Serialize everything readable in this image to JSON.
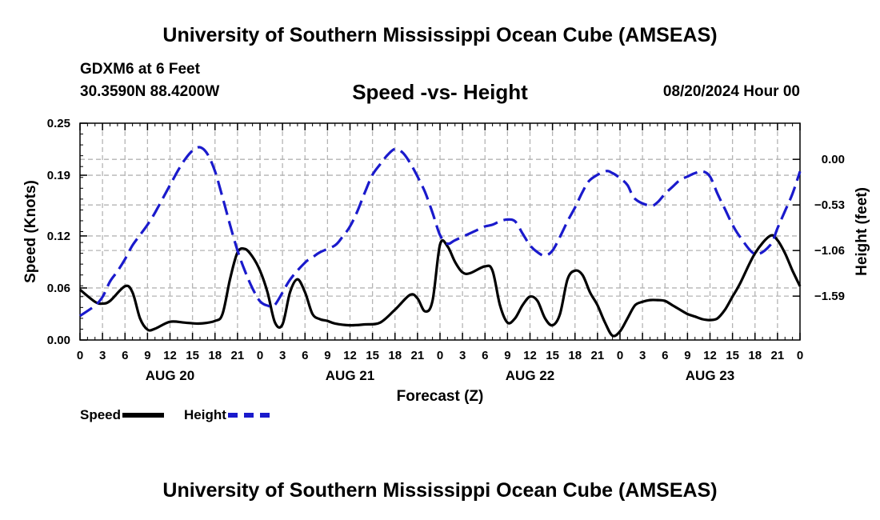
{
  "header": {
    "title": "University of Southern Mississippi Ocean Cube (AMSEAS)",
    "station": "GDXM6 at 6 Feet",
    "coords": "30.3590N  88.4200W",
    "chart_title": "Speed -vs- Height",
    "date_hour": "08/20/2024 Hour 00"
  },
  "footer": {
    "title": "University of Southern Mississippi Ocean Cube (AMSEAS)"
  },
  "legend": {
    "speed_label": "Speed",
    "height_label": "Height"
  },
  "colors": {
    "speed": "#000000",
    "height": "#1a1acc",
    "grid": "#b4b4b4"
  },
  "chart_data": {
    "type": "line",
    "xlabel": "Forecast (Z)",
    "ylabel_left": "Speed (Knots)",
    "ylabel_right": "Height (feet)",
    "x_range_hours": [
      0,
      96
    ],
    "x_ticks": [
      "0",
      "3",
      "6",
      "9",
      "12",
      "15",
      "18",
      "21",
      "0",
      "3",
      "6",
      "9",
      "12",
      "15",
      "18",
      "21",
      "0",
      "3",
      "6",
      "9",
      "12",
      "15",
      "18",
      "21",
      "0",
      "3",
      "6",
      "9",
      "12",
      "15",
      "18",
      "21",
      "0"
    ],
    "day_labels": [
      {
        "label": "AUG 20",
        "hour": 12
      },
      {
        "label": "AUG 21",
        "hour": 36
      },
      {
        "label": "AUG 22",
        "hour": 60
      },
      {
        "label": "AUG 23",
        "hour": 84
      }
    ],
    "ylim_left": [
      0,
      0.25
    ],
    "yticks_left": [
      "0.00",
      "0.06",
      "0.12",
      "0.19",
      "0.25"
    ],
    "ylim_right": [
      -2.1,
      0.42
    ],
    "yticks_right": [
      {
        "label": "0.00",
        "value": 0.0
      },
      {
        "label": "−0.53",
        "value": -0.53
      },
      {
        "label": "−1.06",
        "value": -1.06
      },
      {
        "label": "−1.59",
        "value": -1.59
      }
    ],
    "grid": true,
    "series": [
      {
        "name": "Speed",
        "axis": "left",
        "style": "solid",
        "x": [
          0,
          2,
          3,
          4,
          6,
          7,
          8,
          9,
          10,
          12,
          14,
          16,
          18,
          19,
          20,
          21,
          22,
          23,
          24,
          25,
          26,
          27,
          28,
          29,
          30,
          31,
          32,
          33,
          34,
          36,
          38,
          40,
          42,
          44,
          45,
          46,
          47,
          48,
          49,
          50,
          51,
          52,
          54,
          55,
          56,
          57,
          58,
          59,
          60,
          61,
          62,
          63,
          64,
          65,
          66,
          67,
          68,
          69,
          70,
          71,
          72,
          73,
          74,
          75,
          76,
          77,
          78,
          79,
          80,
          81,
          82,
          83,
          84,
          85,
          86,
          87,
          88,
          90,
          92,
          93,
          94,
          95,
          96
        ],
        "values": [
          0.058,
          0.044,
          0.042,
          0.045,
          0.062,
          0.055,
          0.025,
          0.012,
          0.013,
          0.021,
          0.02,
          0.019,
          0.022,
          0.03,
          0.07,
          0.101,
          0.105,
          0.096,
          0.08,
          0.055,
          0.02,
          0.018,
          0.055,
          0.07,
          0.055,
          0.03,
          0.024,
          0.022,
          0.019,
          0.017,
          0.018,
          0.02,
          0.035,
          0.052,
          0.048,
          0.033,
          0.045,
          0.11,
          0.108,
          0.09,
          0.078,
          0.077,
          0.085,
          0.08,
          0.04,
          0.02,
          0.025,
          0.04,
          0.05,
          0.045,
          0.025,
          0.017,
          0.03,
          0.07,
          0.08,
          0.075,
          0.055,
          0.04,
          0.02,
          0.005,
          0.01,
          0.025,
          0.04,
          0.044,
          0.046,
          0.046,
          0.045,
          0.04,
          0.035,
          0.03,
          0.027,
          0.024,
          0.023,
          0.025,
          0.035,
          0.05,
          0.065,
          0.1,
          0.12,
          0.115,
          0.1,
          0.08,
          0.062
        ]
      },
      {
        "name": "Height",
        "axis": "right",
        "style": "dashed",
        "x": [
          0,
          2,
          3,
          4,
          5,
          6,
          7,
          8,
          9,
          10,
          12,
          13,
          14,
          15,
          16,
          17,
          18,
          19,
          20,
          21,
          22,
          23,
          24,
          25,
          26,
          28,
          30,
          31,
          32,
          34,
          35,
          36,
          37,
          38,
          39,
          40,
          41,
          42,
          43,
          44,
          45,
          46,
          47,
          48,
          49,
          50,
          52,
          53,
          54,
          55,
          56,
          57,
          58,
          59,
          60,
          61,
          62,
          63,
          64,
          65,
          66,
          67,
          68,
          70,
          71,
          72,
          73,
          74,
          76,
          77,
          78,
          79,
          80,
          81,
          82,
          83,
          84,
          85,
          86,
          87,
          88,
          90,
          92,
          93,
          94,
          95,
          96
        ],
        "values": [
          -1.82,
          -1.7,
          -1.6,
          -1.42,
          -1.3,
          -1.16,
          -1.0,
          -0.88,
          -0.76,
          -0.62,
          -0.3,
          -0.14,
          0.0,
          0.1,
          0.14,
          0.06,
          -0.14,
          -0.44,
          -0.76,
          -1.06,
          -1.3,
          -1.5,
          -1.65,
          -1.7,
          -1.69,
          -1.4,
          -1.2,
          -1.14,
          -1.08,
          -1.0,
          -0.9,
          -0.78,
          -0.6,
          -0.38,
          -0.18,
          -0.06,
          0.05,
          0.12,
          0.08,
          -0.04,
          -0.2,
          -0.38,
          -0.62,
          -0.88,
          -0.98,
          -0.94,
          -0.86,
          -0.82,
          -0.78,
          -0.76,
          -0.72,
          -0.7,
          -0.72,
          -0.86,
          -1.0,
          -1.08,
          -1.12,
          -1.06,
          -0.9,
          -0.72,
          -0.56,
          -0.38,
          -0.24,
          -0.14,
          -0.16,
          -0.22,
          -0.3,
          -0.46,
          -0.54,
          -0.5,
          -0.4,
          -0.32,
          -0.24,
          -0.2,
          -0.16,
          -0.14,
          -0.2,
          -0.4,
          -0.58,
          -0.76,
          -0.9,
          -1.1,
          -1.0,
          -0.8,
          -0.6,
          -0.4,
          -0.14
        ]
      }
    ]
  }
}
